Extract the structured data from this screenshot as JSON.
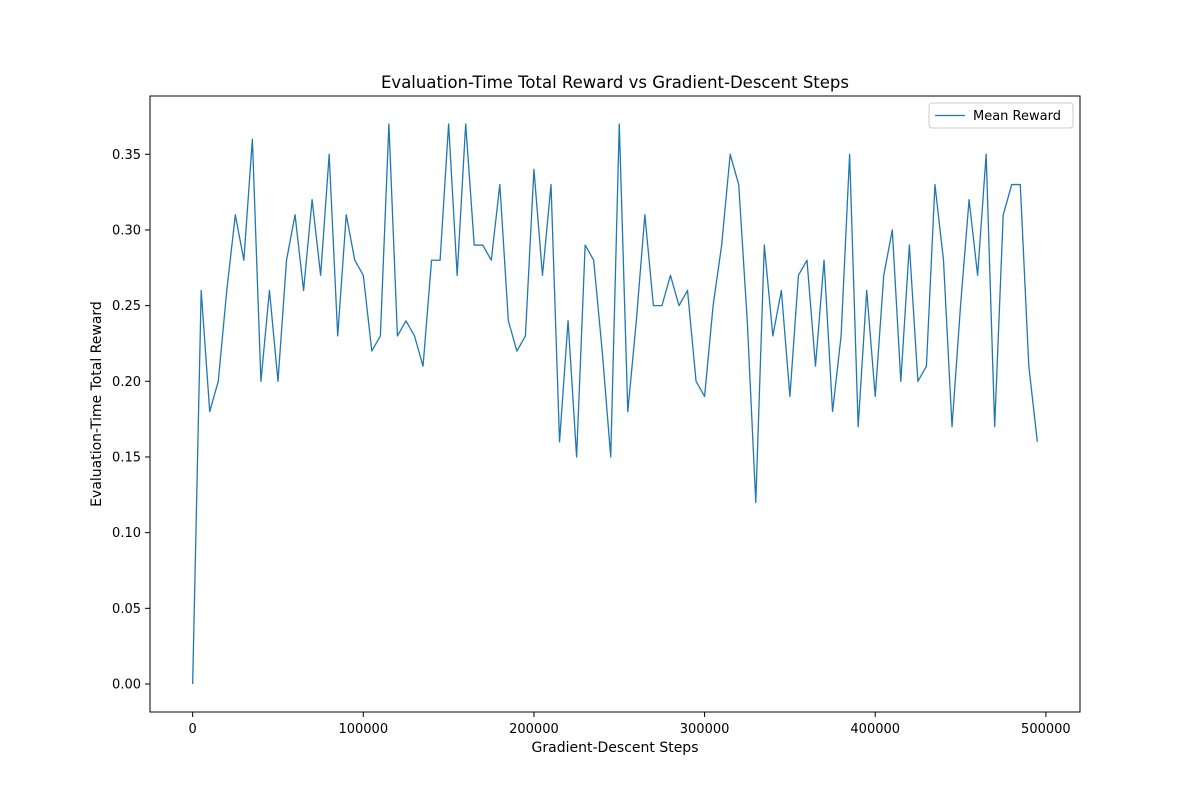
{
  "chart_data": {
    "type": "line",
    "title": "Evaluation-Time Total Reward vs Gradient-Descent Steps",
    "xlabel": "Gradient-Descent Steps",
    "ylabel": "Evaluation-Time Total Reward",
    "xlim": [
      -25000,
      520000
    ],
    "ylim": [
      -0.0185,
      0.3885
    ],
    "xticks": [
      0,
      100000,
      200000,
      300000,
      400000,
      500000
    ],
    "yticks": [
      0.0,
      0.05,
      0.1,
      0.15,
      0.2,
      0.25,
      0.3,
      0.35
    ],
    "xtick_labels": [
      "0",
      "100000",
      "200000",
      "300000",
      "400000",
      "500000"
    ],
    "ytick_labels": [
      "0.00",
      "0.05",
      "0.10",
      "0.15",
      "0.20",
      "0.25",
      "0.30",
      "0.35"
    ],
    "grid": false,
    "legend_position": "upper right",
    "series": [
      {
        "name": "Mean Reward",
        "color": "#1f77b4",
        "x": [
          0,
          5000,
          10000,
          15000,
          20000,
          25000,
          30000,
          35000,
          40000,
          45000,
          50000,
          55000,
          60000,
          65000,
          70000,
          75000,
          80000,
          85000,
          90000,
          95000,
          100000,
          105000,
          110000,
          115000,
          120000,
          125000,
          130000,
          135000,
          140000,
          145000,
          150000,
          155000,
          160000,
          165000,
          170000,
          175000,
          180000,
          185000,
          190000,
          195000,
          200000,
          205000,
          210000,
          215000,
          220000,
          225000,
          230000,
          235000,
          240000,
          245000,
          250000,
          255000,
          260000,
          265000,
          270000,
          275000,
          280000,
          285000,
          290000,
          295000,
          300000,
          305000,
          310000,
          315000,
          320000,
          325000,
          330000,
          335000,
          340000,
          345000,
          350000,
          355000,
          360000,
          365000,
          370000,
          375000,
          380000,
          385000,
          390000,
          395000,
          400000,
          405000,
          410000,
          415000,
          420000,
          425000,
          430000,
          435000,
          440000,
          445000,
          450000,
          455000,
          460000,
          465000,
          470000,
          475000,
          480000,
          485000,
          490000,
          495000
        ],
        "y": [
          0.0,
          0.26,
          0.18,
          0.2,
          0.26,
          0.31,
          0.28,
          0.36,
          0.2,
          0.26,
          0.2,
          0.28,
          0.31,
          0.26,
          0.32,
          0.27,
          0.35,
          0.23,
          0.31,
          0.28,
          0.27,
          0.22,
          0.23,
          0.37,
          0.23,
          0.24,
          0.23,
          0.21,
          0.28,
          0.28,
          0.37,
          0.27,
          0.37,
          0.29,
          0.29,
          0.28,
          0.33,
          0.24,
          0.22,
          0.23,
          0.34,
          0.27,
          0.33,
          0.16,
          0.24,
          0.15,
          0.29,
          0.28,
          0.22,
          0.15,
          0.37,
          0.18,
          0.24,
          0.31,
          0.25,
          0.25,
          0.27,
          0.25,
          0.26,
          0.2,
          0.19,
          0.25,
          0.29,
          0.35,
          0.33,
          0.24,
          0.12,
          0.29,
          0.23,
          0.26,
          0.19,
          0.27,
          0.28,
          0.21,
          0.28,
          0.18,
          0.23,
          0.35,
          0.17,
          0.26,
          0.19,
          0.27,
          0.3,
          0.2,
          0.29,
          0.2,
          0.21,
          0.33,
          0.28,
          0.17,
          0.25,
          0.32,
          0.27,
          0.35,
          0.17,
          0.31,
          0.33,
          0.33,
          0.21,
          0.16
        ]
      }
    ]
  }
}
